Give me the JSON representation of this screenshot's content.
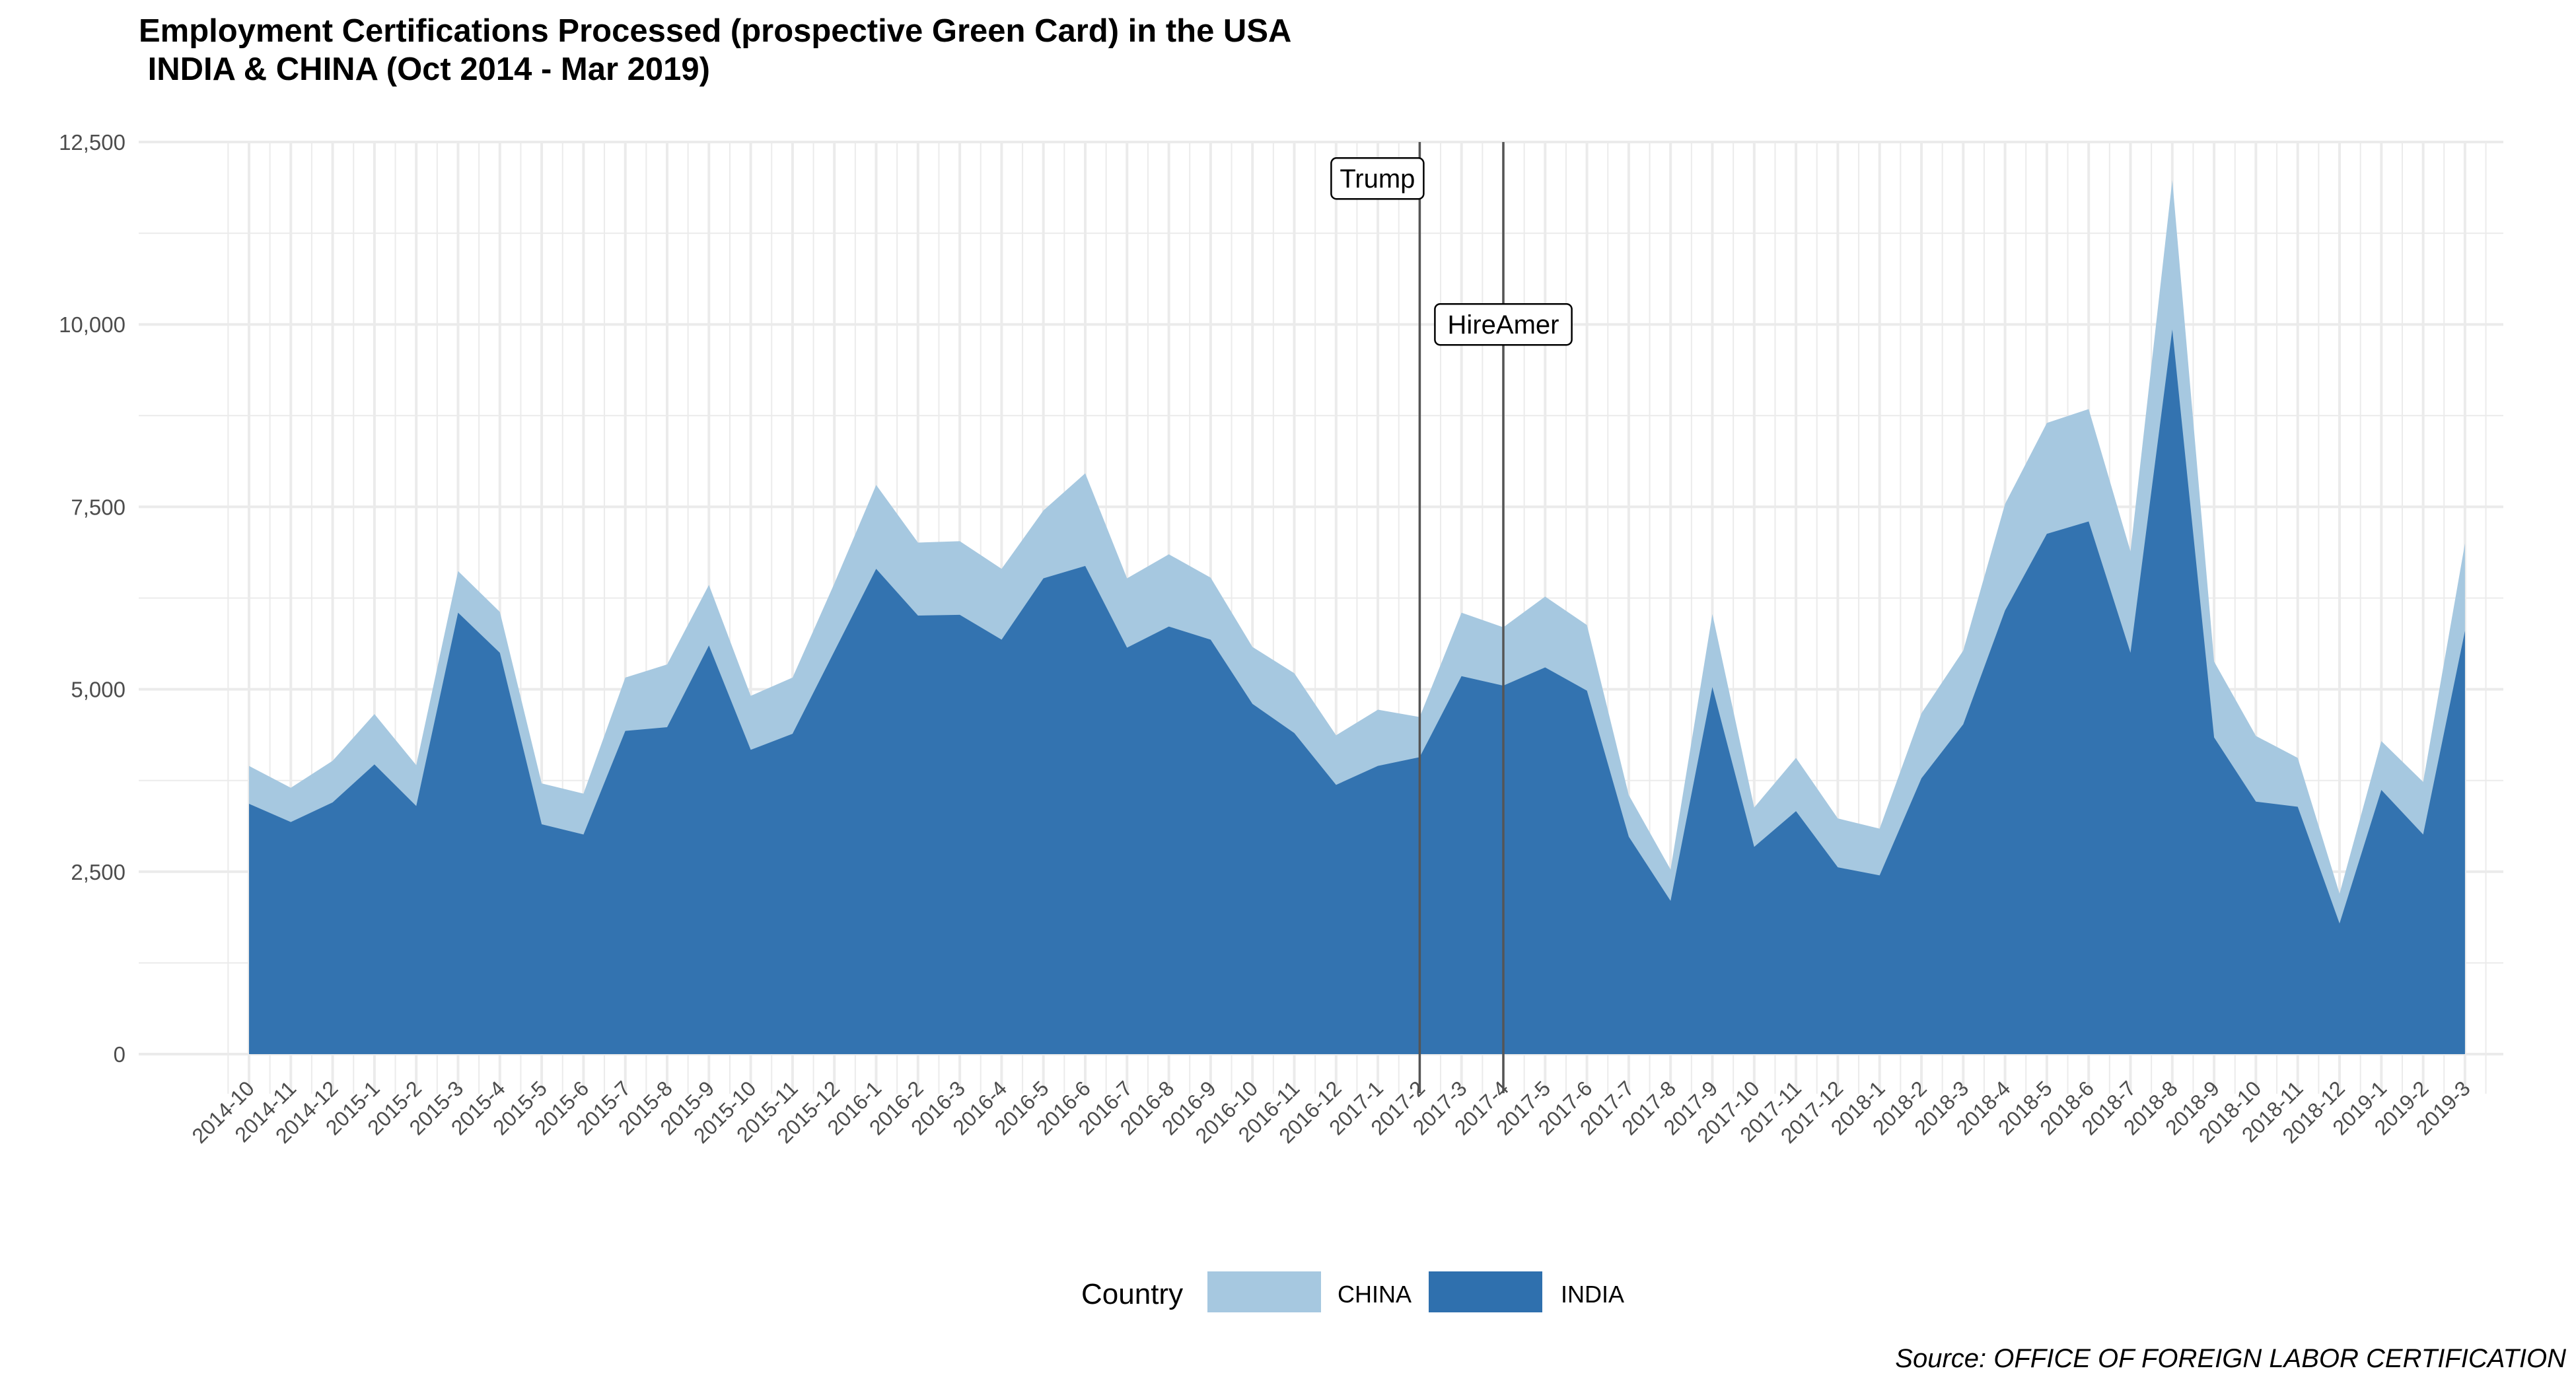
{
  "title_line1": "Employment Certifications Processed (prospective Green Card) in the USA",
  "title_line2": " INDIA & CHINA (Oct 2014 - Mar 2019)",
  "legend": {
    "title": "Country",
    "items": [
      {
        "label": "CHINA",
        "color": "#a6c8e0"
      },
      {
        "label": "INDIA",
        "color": "#2f70ae"
      }
    ]
  },
  "source": "Source: OFFICE OF FOREIGN LABOR CERTIFICATION",
  "chart_data": {
    "type": "area",
    "stacked": true,
    "categories": [
      "2014-10",
      "2014-11",
      "2014-12",
      "2015-1",
      "2015-2",
      "2015-3",
      "2015-4",
      "2015-5",
      "2015-6",
      "2015-7",
      "2015-8",
      "2015-9",
      "2015-10",
      "2015-11",
      "2015-12",
      "2016-1",
      "2016-2",
      "2016-3",
      "2016-4",
      "2016-5",
      "2016-6",
      "2016-7",
      "2016-8",
      "2016-9",
      "2016-10",
      "2016-11",
      "2016-12",
      "2017-1",
      "2017-2",
      "2017-3",
      "2017-4",
      "2017-5",
      "2017-6",
      "2017-7",
      "2017-8",
      "2017-9",
      "2017-10",
      "2017-11",
      "2017-12",
      "2018-1",
      "2018-2",
      "2018-3",
      "2018-4",
      "2018-5",
      "2018-6",
      "2018-7",
      "2018-8",
      "2018-9",
      "2018-10",
      "2018-11",
      "2018-12",
      "2019-1",
      "2019-2",
      "2019-3"
    ],
    "series": [
      {
        "name": "INDIA",
        "color": "#2f70ae",
        "values": [
          3430,
          3180,
          3450,
          3970,
          3400,
          6050,
          5500,
          3150,
          3010,
          4430,
          4480,
          5600,
          4170,
          4390,
          5520,
          6650,
          6010,
          6020,
          5680,
          6520,
          6690,
          5570,
          5860,
          5680,
          4800,
          4400,
          3690,
          3950,
          4070,
          5180,
          5050,
          5300,
          4980,
          2980,
          2100,
          5030,
          2840,
          3330,
          2560,
          2450,
          3780,
          4520,
          6080,
          7130,
          7300,
          5500,
          9930,
          4340,
          3460,
          3390,
          1790,
          3620,
          3010,
          5800
        ]
      },
      {
        "name": "CHINA",
        "color": "#a6c8e0",
        "values": [
          520,
          470,
          570,
          690,
          560,
          570,
          560,
          560,
          560,
          730,
          860,
          830,
          740,
          770,
          930,
          1150,
          1000,
          1010,
          970,
          930,
          1270,
          950,
          990,
          850,
          780,
          820,
          680,
          770,
          550,
          870,
          800,
          970,
          900,
          570,
          430,
          1000,
          540,
          730,
          670,
          640,
          890,
          1010,
          1460,
          1520,
          1540,
          1390,
          2050,
          1040,
          900,
          670,
          410,
          670,
          720,
          1200
        ]
      }
    ],
    "vlines": [
      {
        "label": "Trump",
        "x": "2017-2",
        "label_y": 12000
      },
      {
        "label": "HireAmer",
        "x": "2017-4",
        "label_y": 10000
      }
    ],
    "yticks": [
      0,
      2500,
      5000,
      7500,
      10000,
      12500
    ],
    "ytick_labels": [
      "0",
      "2,500",
      "5,000",
      "7,500",
      "10,000",
      "12,500"
    ],
    "ylim": [
      0,
      12500
    ],
    "grid": true,
    "legend_position": "bottom"
  }
}
